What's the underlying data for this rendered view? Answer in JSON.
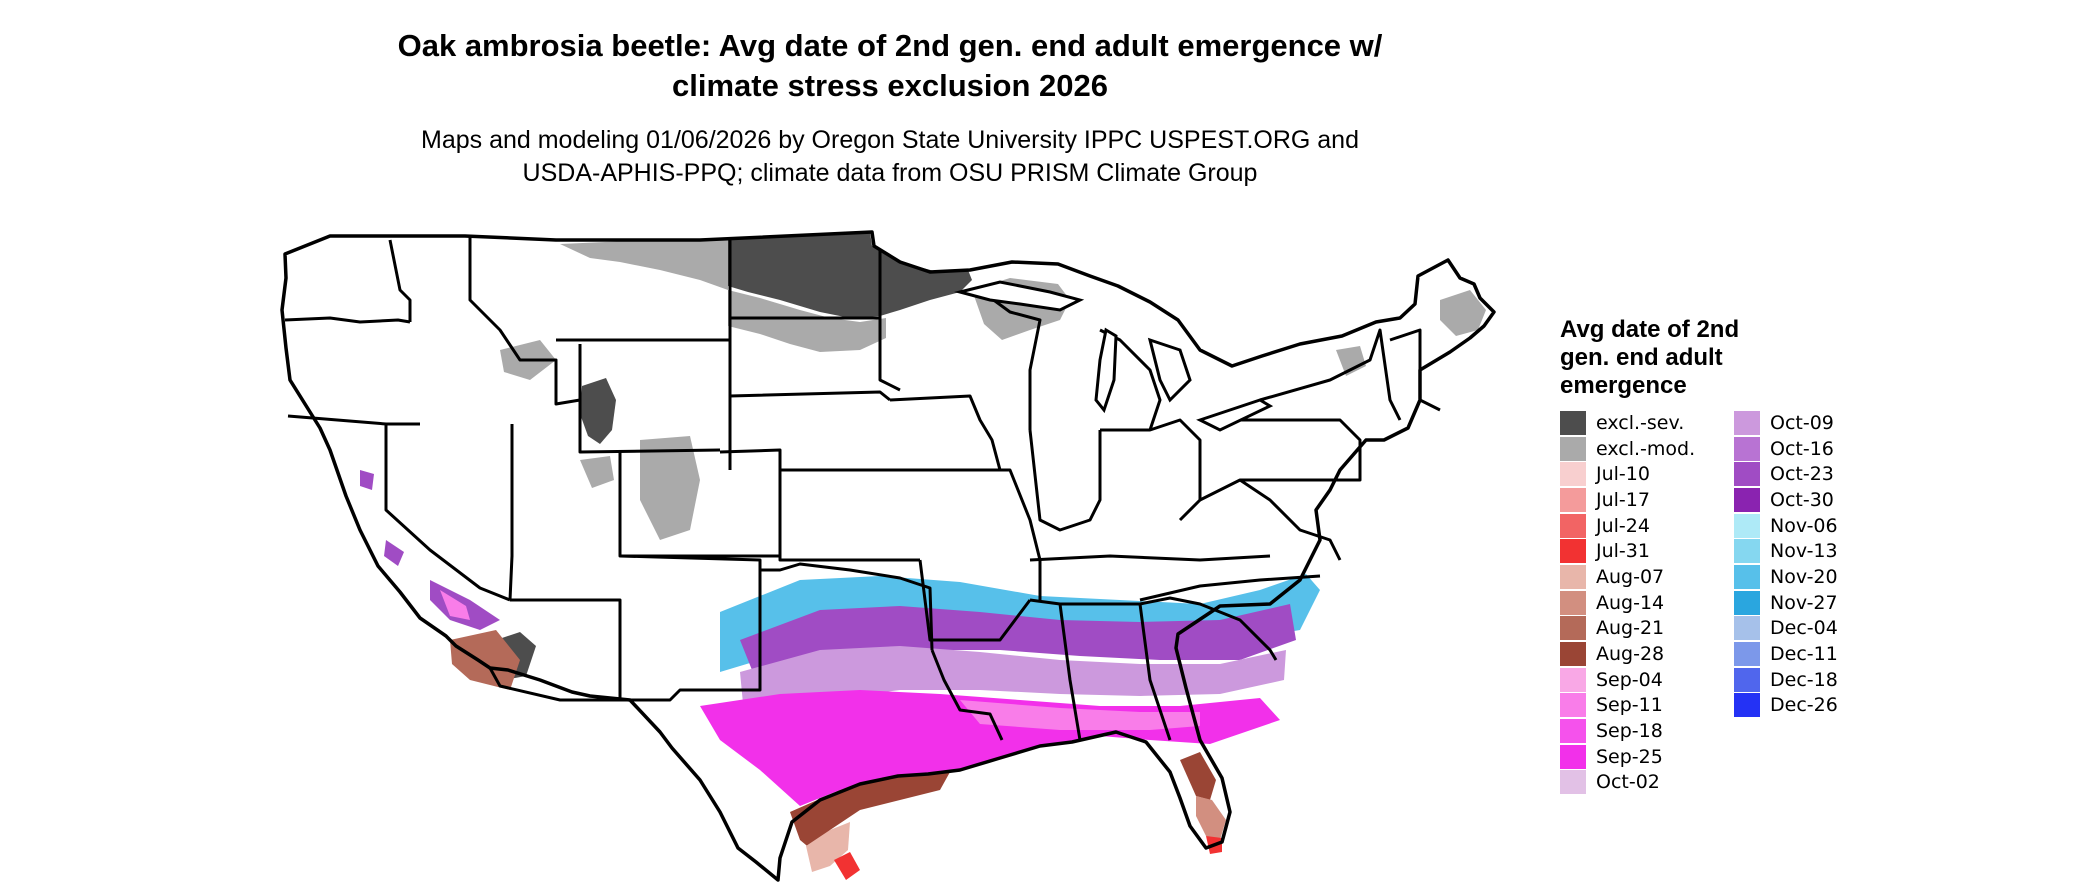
{
  "title_line1": "Oak ambrosia beetle: Avg date of 2nd gen. end adult emergence w/",
  "title_line2": "climate stress exclusion 2026",
  "subtitle_line1": "Maps and modeling 01/06/2026 by Oregon State University IPPC USPEST.ORG and",
  "subtitle_line2": "USDA-APHIS-PPQ; climate data from OSU PRISM Climate Group",
  "legend": {
    "title_lines": [
      "Avg date of 2nd",
      "gen. end adult",
      "emergence"
    ],
    "items": [
      {
        "label": "excl.-sev.",
        "color": "#4d4d4d"
      },
      {
        "label": "excl.-mod.",
        "color": "#aaaaaa"
      },
      {
        "label": "Jul-10",
        "color": "#f8cfcf"
      },
      {
        "label": "Jul-17",
        "color": "#f49b9b"
      },
      {
        "label": "Jul-24",
        "color": "#f26464"
      },
      {
        "label": "Jul-31",
        "color": "#f23232"
      },
      {
        "label": "Aug-07",
        "color": "#e8b6aa"
      },
      {
        "label": "Aug-14",
        "color": "#d28f80"
      },
      {
        "label": "Aug-21",
        "color": "#b46a59"
      },
      {
        "label": "Aug-28",
        "color": "#9a4535"
      },
      {
        "label": "Sep-04",
        "color": "#f9a8e6"
      },
      {
        "label": "Sep-11",
        "color": "#f97de9"
      },
      {
        "label": "Sep-18",
        "color": "#f552ec"
      },
      {
        "label": "Sep-25",
        "color": "#f230ea"
      },
      {
        "label": "Oct-02",
        "color": "#e2c1e6"
      },
      {
        "label": "Oct-09",
        "color": "#cc99dd"
      },
      {
        "label": "Oct-16",
        "color": "#b873d3"
      },
      {
        "label": "Oct-23",
        "color": "#a04cc4"
      },
      {
        "label": "Oct-30",
        "color": "#8a23b0"
      },
      {
        "label": "Nov-06",
        "color": "#aeeaf7"
      },
      {
        "label": "Nov-13",
        "color": "#85d7f0"
      },
      {
        "label": "Nov-20",
        "color": "#57c0ea"
      },
      {
        "label": "Nov-27",
        "color": "#2aa6df"
      },
      {
        "label": "Dec-04",
        "color": "#a6c1ea"
      },
      {
        "label": "Dec-11",
        "color": "#7c98ea"
      },
      {
        "label": "Dec-18",
        "color": "#5066ed"
      },
      {
        "label": "Dec-26",
        "color": "#2432f5"
      }
    ]
  }
}
